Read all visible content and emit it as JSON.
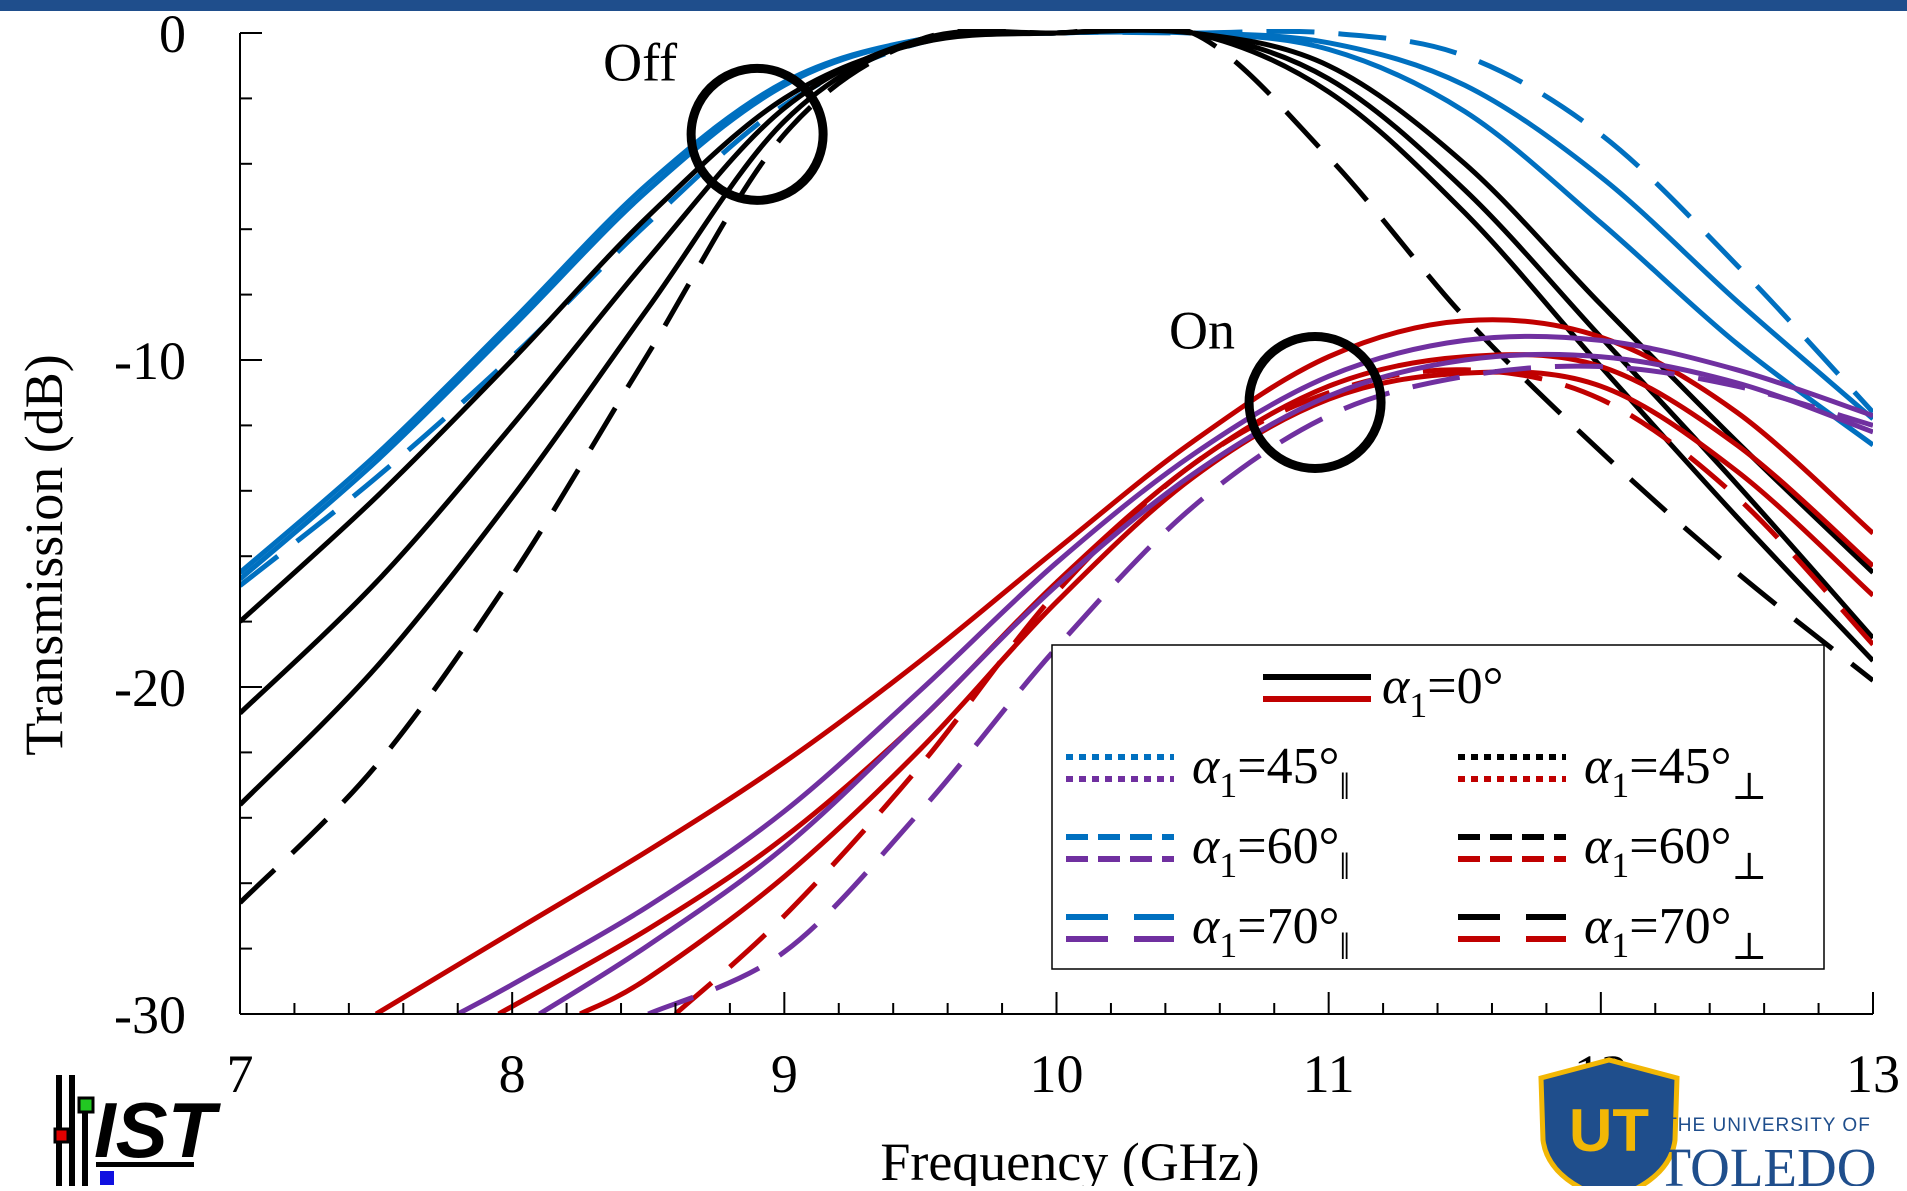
{
  "chart_data": {
    "type": "line",
    "title": "",
    "xlabel": "Frequency (GHz)",
    "ylabel": "Transmission (dB)",
    "xlim": [
      7,
      13
    ],
    "ylim": [
      -30,
      0
    ],
    "x_ticks": [
      7,
      8,
      9,
      10,
      11,
      12,
      13
    ],
    "x_tick_labels": [
      "7",
      "8",
      "9",
      "10",
      "11",
      "12",
      "13"
    ],
    "y_ticks": [
      0,
      -10,
      -20,
      -30
    ],
    "y_tick_labels": [
      "0",
      "-10",
      "-20",
      "-30"
    ],
    "grid": false,
    "legend_placement": "bottom-right",
    "annotations": [
      {
        "text": "Off",
        "x": 8.9,
        "y": -3.1
      },
      {
        "text": "On",
        "x": 10.95,
        "y": -11.3
      }
    ],
    "series": [
      {
        "state": "off",
        "color": "#0070c0",
        "dash": "solid",
        "x": [
          7.0,
          7.5,
          8.0,
          8.5,
          9.0,
          9.5,
          10.0,
          10.5,
          11.0,
          11.5,
          12.0,
          12.5,
          13.0
        ],
        "y": [
          -16.5,
          -12.9,
          -8.8,
          -4.6,
          -1.5,
          -0.2,
          0.0,
          0.0,
          -0.5,
          -2.4,
          -5.8,
          -9.5,
          -12.6
        ]
      },
      {
        "state": "off",
        "color": "#0070c0",
        "dash": "solid",
        "x": [
          7.0,
          7.5,
          8.0,
          8.5,
          9.0,
          9.5,
          10.0,
          10.5,
          11.0,
          11.5,
          12.0,
          12.5,
          13.0
        ],
        "y": [
          -16.7,
          -13.1,
          -9.0,
          -4.8,
          -1.6,
          -0.2,
          0.0,
          0.0,
          -0.3,
          -1.6,
          -4.4,
          -8.2,
          -11.8
        ]
      },
      {
        "state": "off",
        "color": "#0070c0",
        "dash": "dashed",
        "x": [
          7.0,
          7.5,
          8.0,
          8.5,
          9.0,
          9.5,
          10.0,
          10.5,
          11.0,
          11.5,
          12.0,
          12.5,
          13.0
        ],
        "y": [
          -16.9,
          -13.6,
          -9.9,
          -5.8,
          -2.2,
          -0.3,
          0.0,
          0.0,
          0.0,
          -0.7,
          -3.1,
          -7.1,
          -11.6
        ]
      },
      {
        "state": "off",
        "color": "#000000",
        "dash": "solid",
        "x": [
          7.0,
          7.5,
          8.0,
          8.5,
          9.0,
          9.5,
          10.0,
          10.5,
          11.0,
          11.5,
          12.0,
          12.5,
          13.0
        ],
        "y": [
          -18.0,
          -14.2,
          -10.0,
          -5.6,
          -2.0,
          -0.3,
          0.0,
          0.0,
          -1.0,
          -4.0,
          -8.3,
          -12.5,
          -16.5
        ]
      },
      {
        "state": "off",
        "color": "#000000",
        "dash": "solid",
        "x": [
          7.0,
          7.5,
          8.0,
          8.5,
          9.0,
          9.5,
          10.0,
          10.5,
          11.0,
          11.5,
          12.0,
          12.5,
          13.0
        ],
        "y": [
          -20.8,
          -16.8,
          -12.0,
          -6.9,
          -2.3,
          -0.2,
          0.0,
          0.0,
          -1.4,
          -4.8,
          -9.3,
          -13.8,
          -18.5
        ]
      },
      {
        "state": "off",
        "color": "#000000",
        "dash": "solid",
        "x": [
          7.0,
          7.5,
          8.0,
          8.5,
          9.0,
          9.5,
          10.0,
          10.5,
          11.0,
          11.5,
          12.0,
          12.5,
          13.0
        ],
        "y": [
          -23.6,
          -19.4,
          -14.2,
          -8.4,
          -2.7,
          -0.2,
          0.0,
          0.0,
          -1.8,
          -5.5,
          -10.2,
          -14.8,
          -19.2
        ]
      },
      {
        "state": "off",
        "color": "#000000",
        "dash": "dashed",
        "x": [
          7.0,
          7.5,
          8.0,
          8.5,
          9.0,
          9.5,
          10.0,
          10.5,
          11.0,
          11.5,
          12.0,
          12.5,
          13.0
        ],
        "y": [
          -26.6,
          -22.4,
          -16.6,
          -9.8,
          -3.1,
          -0.2,
          0.0,
          0.0,
          -3.8,
          -8.7,
          -12.8,
          -16.5,
          -19.8
        ]
      },
      {
        "state": "on",
        "color": "#c00000",
        "dash": "solid",
        "x": [
          7.5,
          8.0,
          8.5,
          9.0,
          9.5,
          10.0,
          10.5,
          11.0,
          11.5,
          12.0,
          12.5,
          13.0
        ],
        "y": [
          -30.0,
          -27.5,
          -25.0,
          -22.3,
          -19.2,
          -15.8,
          -12.5,
          -9.9,
          -8.8,
          -9.3,
          -11.6,
          -15.3
        ]
      },
      {
        "state": "on",
        "color": "#c00000",
        "dash": "solid",
        "x": [
          7.95,
          8.5,
          9.0,
          9.5,
          10.0,
          10.5,
          11.0,
          11.5,
          12.0,
          12.5,
          13.0
        ],
        "y": [
          -30.0,
          -27.4,
          -24.6,
          -21.0,
          -16.8,
          -13.2,
          -10.8,
          -9.9,
          -10.2,
          -12.6,
          -16.3
        ]
      },
      {
        "state": "on",
        "color": "#c00000",
        "dash": "solid",
        "x": [
          8.25,
          8.5,
          9.0,
          9.5,
          10.0,
          10.5,
          11.0,
          11.5,
          12.0,
          12.5,
          13.0
        ],
        "y": [
          -30.0,
          -28.9,
          -25.8,
          -21.9,
          -17.4,
          -13.6,
          -11.2,
          -10.4,
          -10.8,
          -13.4,
          -17.2
        ]
      },
      {
        "state": "on",
        "color": "#c00000",
        "dash": "dashed",
        "x": [
          8.6,
          9.0,
          9.5,
          10.0,
          10.5,
          11.0,
          11.5,
          12.0,
          12.5,
          13.0
        ],
        "y": [
          -30.0,
          -27.0,
          -22.4,
          -17.1,
          -13.2,
          -11.0,
          -10.3,
          -11.2,
          -14.2,
          -18.7
        ]
      },
      {
        "state": "on",
        "color": "#7030a0",
        "dash": "solid",
        "x": [
          7.8,
          8.0,
          8.5,
          9.0,
          9.5,
          10.0,
          10.5,
          11.0,
          11.5,
          12.0,
          12.5,
          13.0
        ],
        "y": [
          -30.0,
          -29.1,
          -26.7,
          -23.8,
          -20.1,
          -16.2,
          -12.9,
          -10.5,
          -9.4,
          -9.4,
          -10.3,
          -11.7
        ]
      },
      {
        "state": "on",
        "color": "#7030a0",
        "dash": "solid",
        "x": [
          8.1,
          8.5,
          9.0,
          9.5,
          10.0,
          10.5,
          11.0,
          11.5,
          12.0,
          12.5,
          13.0
        ],
        "y": [
          -30.0,
          -27.9,
          -24.9,
          -21.0,
          -16.9,
          -13.5,
          -11.1,
          -10.0,
          -9.9,
          -10.7,
          -12.2
        ]
      },
      {
        "state": "on",
        "color": "#7030a0",
        "dash": "dashed",
        "x": [
          8.5,
          9.0,
          9.5,
          10.0,
          10.5,
          11.0,
          11.5,
          12.0,
          12.5,
          13.0
        ],
        "y": [
          -30.0,
          -28.1,
          -23.8,
          -18.8,
          -14.5,
          -11.7,
          -10.5,
          -10.2,
          -10.8,
          -12.0
        ]
      }
    ],
    "legend": {
      "entries": [
        {
          "id": "a0",
          "base": "α",
          "sub": "1",
          "value": "=0°",
          "pol": "",
          "colors": [
            "#000000",
            "#c00000"
          ],
          "dash": "solid"
        },
        {
          "id": "a45p",
          "base": "α",
          "sub": "1",
          "value": "=45°",
          "pol": "‖",
          "colors": [
            "#0070c0",
            "#7030a0"
          ],
          "dash": "dotted"
        },
        {
          "id": "a45s",
          "base": "α",
          "sub": "1",
          "value": "=45°",
          "pol": "⊥",
          "colors": [
            "#000000",
            "#c00000"
          ],
          "dash": "dotted"
        },
        {
          "id": "a60p",
          "base": "α",
          "sub": "1",
          "value": "=60°",
          "pol": "‖",
          "colors": [
            "#0070c0",
            "#7030a0"
          ],
          "dash": "short-dash"
        },
        {
          "id": "a60s",
          "base": "α",
          "sub": "1",
          "value": "=60°",
          "pol": "⊥",
          "colors": [
            "#000000",
            "#c00000"
          ],
          "dash": "short-dash"
        },
        {
          "id": "a70p",
          "base": "α",
          "sub": "1",
          "value": "=70°",
          "pol": "‖",
          "colors": [
            "#0070c0",
            "#7030a0"
          ],
          "dash": "long-dash"
        },
        {
          "id": "a70s",
          "base": "α",
          "sub": "1",
          "value": "=70°",
          "pol": "⊥",
          "colors": [
            "#000000",
            "#c00000"
          ],
          "dash": "long-dash"
        }
      ]
    }
  },
  "header": {
    "bar_color": "#1f4e8c"
  },
  "logos": {
    "ist": {
      "text": "IST"
    },
    "toledo": {
      "shield_text": "UT",
      "top_text": "THE UNIVERSITY OF",
      "name": "TOLEDO",
      "shield_color": "#1f4e8c",
      "accent_color": "#f2b705"
    }
  }
}
